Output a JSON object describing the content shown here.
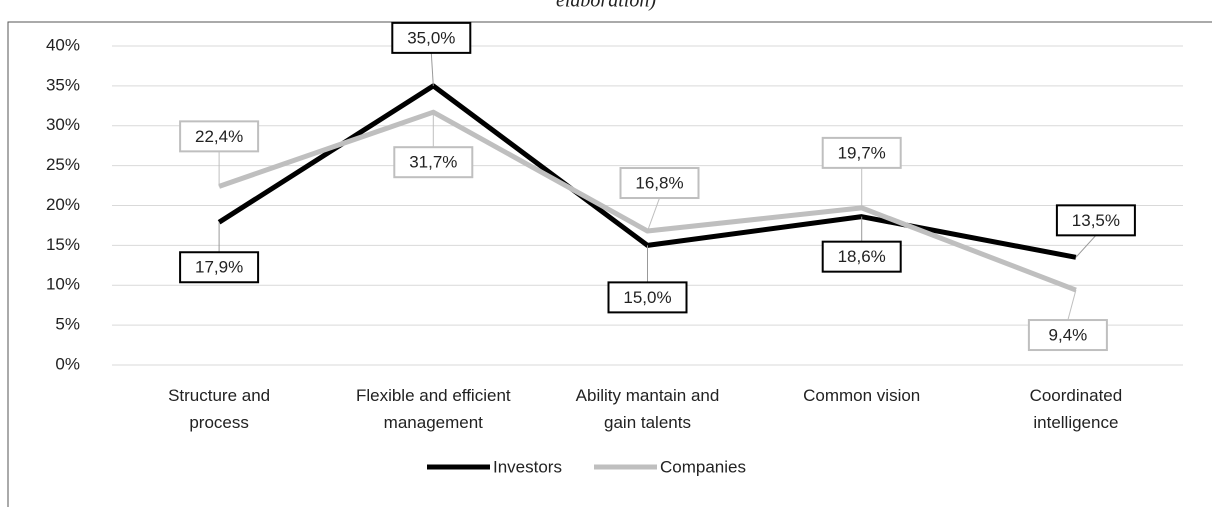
{
  "caption": "elaboration)",
  "chart_data": {
    "type": "line",
    "categories": [
      "Structure and process",
      "Flexible and efficient management",
      "Ability mantain and gain talents",
      "Common vision",
      "Coordinated intelligence"
    ],
    "series": [
      {
        "name": "Investors",
        "color": "#000000",
        "values": [
          17.9,
          35.0,
          15.0,
          18.6,
          13.5
        ],
        "value_labels": [
          "17,9%",
          "35,0%",
          "15,0%",
          "18,6%",
          "13,5%"
        ]
      },
      {
        "name": "Companies",
        "color": "#bfbfbf",
        "values": [
          22.4,
          31.7,
          16.8,
          19.7,
          9.4
        ],
        "value_labels": [
          "22,4%",
          "31,7%",
          "16,8%",
          "19,7%",
          "9,4%"
        ]
      }
    ],
    "ylim": [
      0,
      40
    ],
    "yticks": [
      {
        "value": 0,
        "label": "0%"
      },
      {
        "value": 5,
        "label": "5%"
      },
      {
        "value": 10,
        "label": "10%"
      },
      {
        "value": 15,
        "label": "15%"
      },
      {
        "value": 20,
        "label": "20%"
      },
      {
        "value": 25,
        "label": "25%"
      },
      {
        "value": 30,
        "label": "30%"
      },
      {
        "value": 35,
        "label": "35%"
      },
      {
        "value": 40,
        "label": "40%"
      }
    ],
    "grid": true,
    "legend": "bottom"
  }
}
